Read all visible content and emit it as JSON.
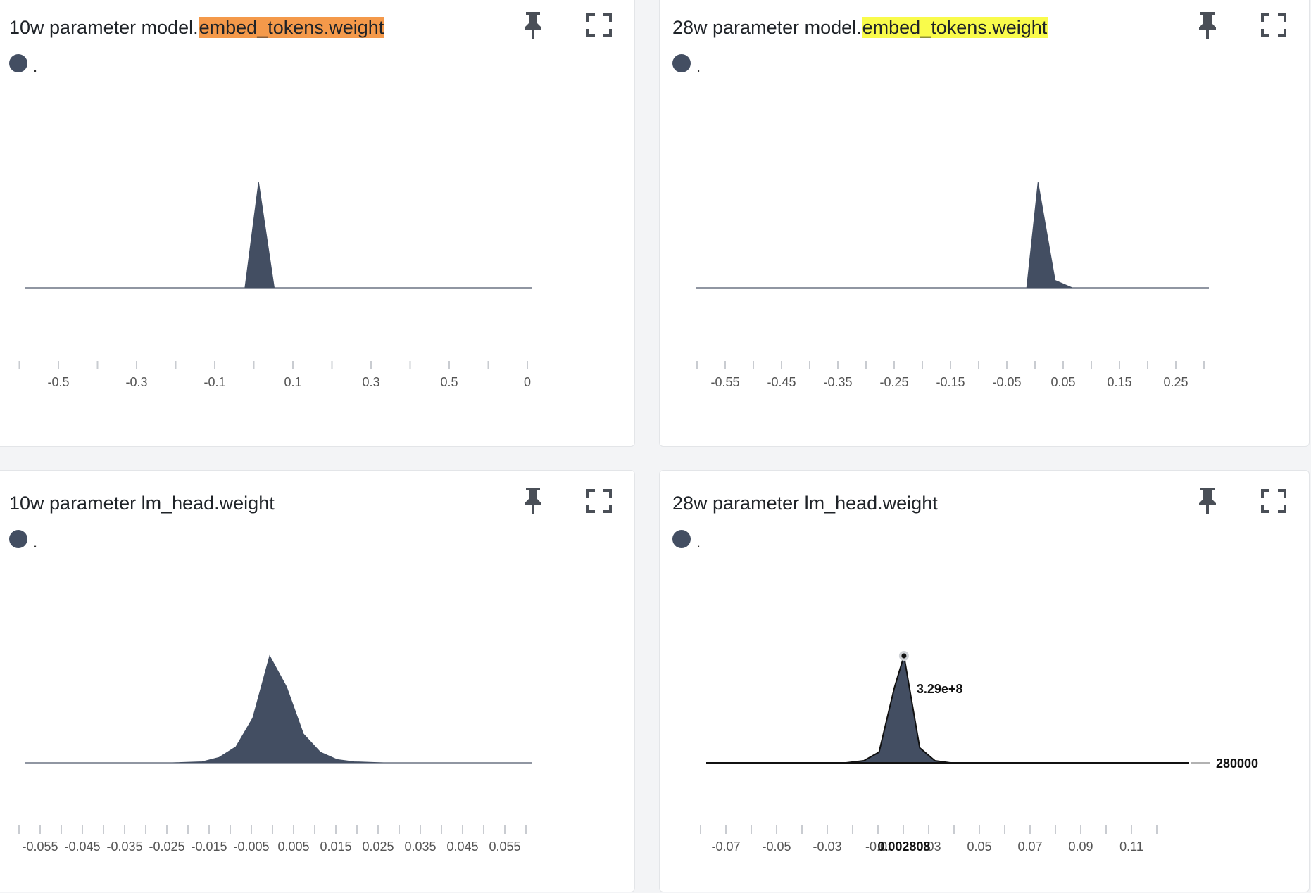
{
  "colors": {
    "area": "#434e62",
    "highlight_orange": "#f4994a",
    "highlight_yellow": "#f9fb4b",
    "axis": "#c9ccd1",
    "icon": "#4a4f57"
  },
  "icons": {
    "pin": "pin-icon",
    "expand": "fullscreen-icon"
  },
  "panels": [
    {
      "title_prefix": "10w parameter model.",
      "title_highlight": "embed_tokens.weight",
      "highlight_color": "#f4994a",
      "legend": "."
    },
    {
      "title_prefix": "28w parameter model.",
      "title_highlight": "embed_tokens.weight",
      "highlight_color": "#f9fb4b",
      "legend": "."
    },
    {
      "title_prefix": "10w parameter lm_head.weight",
      "title_highlight": "",
      "highlight_color": "",
      "legend": "."
    },
    {
      "title_prefix": "28w parameter lm_head.weight",
      "title_highlight": "",
      "highlight_color": "",
      "legend": "."
    }
  ],
  "chart_data": [
    {
      "type": "area",
      "title": "10w parameter model.embed_tokens.weight",
      "xlim": [
        -0.6,
        0.7
      ],
      "tick_labels": [
        "-0.5",
        "-0.3",
        "-0.1",
        "0.1",
        "0.3",
        "0.5",
        "0"
      ],
      "x": [
        -0.6,
        -0.1,
        -0.035,
        0.0,
        0.04,
        0.7
      ],
      "y": [
        0,
        0,
        0,
        1,
        0,
        0
      ]
    },
    {
      "type": "area",
      "title": "28w parameter model.embed_tokens.weight",
      "xlim": [
        -0.6,
        0.3
      ],
      "tick_labels": [
        "-0.55",
        "-0.45",
        "-0.35",
        "-0.25",
        "-0.15",
        "-0.05",
        "0.05",
        "0.15",
        "0.25"
      ],
      "x": [
        -0.6,
        -0.1,
        -0.02,
        0.0,
        0.03,
        0.06,
        0.3
      ],
      "y": [
        0,
        0,
        0,
        1,
        0.07,
        0,
        0
      ]
    },
    {
      "type": "area",
      "title": "10w parameter lm_head.weight",
      "xlim": [
        -0.06,
        0.06
      ],
      "tick_labels": [
        "-0.055",
        "-0.045",
        "-0.035",
        "-0.025",
        "-0.015",
        "-0.005",
        "0.005",
        "0.015",
        "0.025",
        "0.035",
        "0.045",
        "0.055"
      ],
      "x": [
        -0.06,
        -0.025,
        -0.018,
        -0.014,
        -0.01,
        -0.006,
        -0.002,
        0.002,
        0.006,
        0.01,
        0.014,
        0.018,
        0.025,
        0.06
      ],
      "y": [
        0,
        0,
        0.01,
        0.05,
        0.15,
        0.42,
        1,
        0.71,
        0.27,
        0.1,
        0.03,
        0.01,
        0,
        0
      ]
    },
    {
      "type": "area",
      "title": "28w parameter lm_head.weight",
      "xlim": [
        -0.075,
        0.115
      ],
      "tick_labels": [
        "-0.07",
        "-0.05",
        "-0.03",
        "-0.0:",
        "0.03",
        "0.05",
        "0.07",
        "0.09",
        "0.11"
      ],
      "x": [
        -0.075,
        -0.02,
        -0.013,
        -0.007,
        -0.001,
        0.0028,
        0.009,
        0.015,
        0.021,
        0.03,
        0.115
      ],
      "y": [
        0,
        0,
        0.02,
        0.1,
        0.7,
        1,
        0.14,
        0.02,
        0,
        0,
        0
      ],
      "hover": {
        "x_label": "0.002808",
        "value": "3.29e+8",
        "max_label": "280000"
      }
    }
  ]
}
